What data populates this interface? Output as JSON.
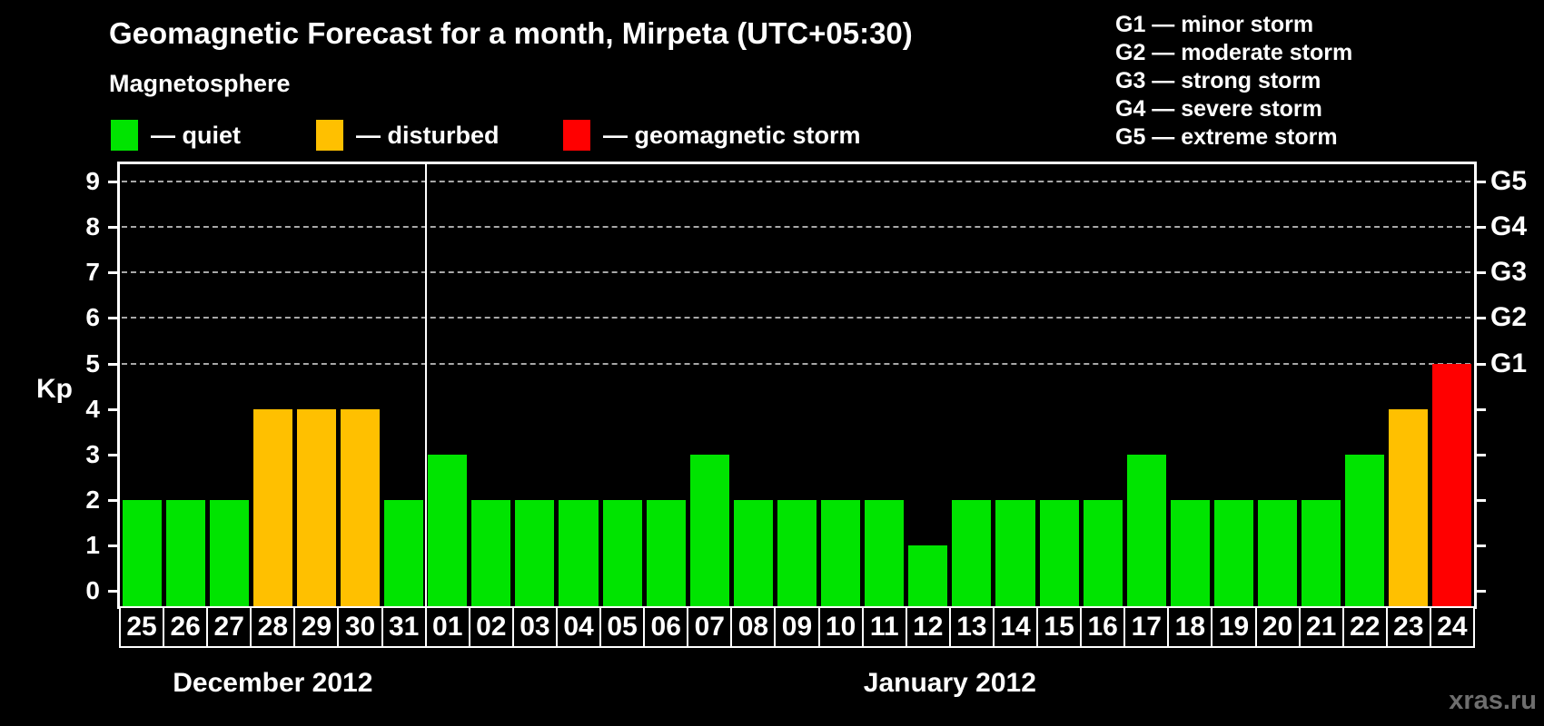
{
  "title": "Geomagnetic Forecast for a month, Mirpeta (UTC+05:30)",
  "subtitle": "Magnetosphere",
  "legend": {
    "items": [
      {
        "key": "quiet",
        "label": "— quiet",
        "color": "#00e400"
      },
      {
        "key": "disturbed",
        "label": "— disturbed",
        "color": "#ffc000"
      },
      {
        "key": "storm",
        "label": "— geomagnetic storm",
        "color": "#ff0000"
      }
    ]
  },
  "g_legend": [
    "G1 — minor storm",
    "G2 — moderate storm",
    "G3 — strong storm",
    "G4 — severe storm",
    "G5 — extreme storm"
  ],
  "watermark": "xras.ru",
  "chart_data": {
    "type": "bar",
    "ylabel": "Kp",
    "ylim": [
      0,
      9.4
    ],
    "y_ticks": [
      0,
      1,
      2,
      3,
      4,
      5,
      6,
      7,
      8,
      9
    ],
    "gridlines_at_kp": [
      5,
      6,
      7,
      8,
      9
    ],
    "right_axis": [
      {
        "kp": 5,
        "label": "G1"
      },
      {
        "kp": 6,
        "label": "G2"
      },
      {
        "kp": 7,
        "label": "G3"
      },
      {
        "kp": 8,
        "label": "G4"
      },
      {
        "kp": 9,
        "label": "G5"
      }
    ],
    "level_colors": {
      "quiet": "#00e400",
      "disturbed": "#ffc000",
      "storm": "#ff0000"
    },
    "months": [
      {
        "label": "December 2012",
        "days": [
          {
            "day": "25",
            "kp": 2,
            "level": "quiet"
          },
          {
            "day": "26",
            "kp": 2,
            "level": "quiet"
          },
          {
            "day": "27",
            "kp": 2,
            "level": "quiet"
          },
          {
            "day": "28",
            "kp": 4,
            "level": "disturbed"
          },
          {
            "day": "29",
            "kp": 4,
            "level": "disturbed"
          },
          {
            "day": "30",
            "kp": 4,
            "level": "disturbed"
          },
          {
            "day": "31",
            "kp": 2,
            "level": "quiet"
          }
        ]
      },
      {
        "label": "January 2012",
        "days": [
          {
            "day": "01",
            "kp": 3,
            "level": "quiet"
          },
          {
            "day": "02",
            "kp": 2,
            "level": "quiet"
          },
          {
            "day": "03",
            "kp": 2,
            "level": "quiet"
          },
          {
            "day": "04",
            "kp": 2,
            "level": "quiet"
          },
          {
            "day": "05",
            "kp": 2,
            "level": "quiet"
          },
          {
            "day": "06",
            "kp": 2,
            "level": "quiet"
          },
          {
            "day": "07",
            "kp": 3,
            "level": "quiet"
          },
          {
            "day": "08",
            "kp": 2,
            "level": "quiet"
          },
          {
            "day": "09",
            "kp": 2,
            "level": "quiet"
          },
          {
            "day": "10",
            "kp": 2,
            "level": "quiet"
          },
          {
            "day": "11",
            "kp": 2,
            "level": "quiet"
          },
          {
            "day": "12",
            "kp": 1,
            "level": "quiet"
          },
          {
            "day": "13",
            "kp": 2,
            "level": "quiet"
          },
          {
            "day": "14",
            "kp": 2,
            "level": "quiet"
          },
          {
            "day": "15",
            "kp": 2,
            "level": "quiet"
          },
          {
            "day": "16",
            "kp": 2,
            "level": "quiet"
          },
          {
            "day": "17",
            "kp": 3,
            "level": "quiet"
          },
          {
            "day": "18",
            "kp": 2,
            "level": "quiet"
          },
          {
            "day": "19",
            "kp": 2,
            "level": "quiet"
          },
          {
            "day": "20",
            "kp": 2,
            "level": "quiet"
          },
          {
            "day": "21",
            "kp": 2,
            "level": "quiet"
          },
          {
            "day": "22",
            "kp": 3,
            "level": "quiet"
          },
          {
            "day": "23",
            "kp": 4,
            "level": "disturbed"
          },
          {
            "day": "24",
            "kp": 5,
            "level": "storm"
          }
        ]
      }
    ]
  }
}
